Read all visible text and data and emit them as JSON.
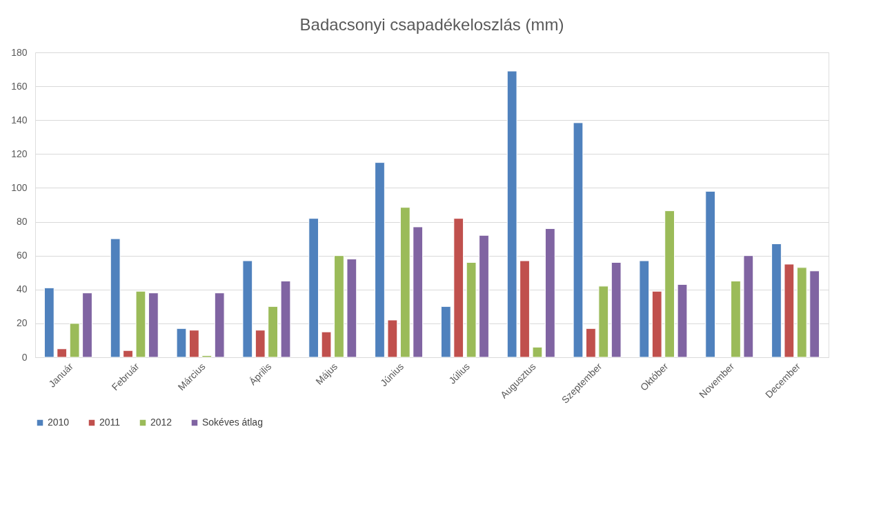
{
  "chart_data": {
    "type": "bar",
    "title": "Badacsonyi csapadékeloszlás (mm)",
    "categories": [
      "Január",
      "Február",
      "Március",
      "Április",
      "Május",
      "Június",
      "Július",
      "Augusztus",
      "Szeptember",
      "Október",
      "November",
      "December"
    ],
    "series": [
      {
        "name": "2010",
        "color": "#4f81bd",
        "values": [
          41,
          70,
          17,
          57,
          82,
          115,
          30,
          169,
          138.5,
          57,
          98,
          67
        ]
      },
      {
        "name": "2011",
        "color": "#c0504d",
        "values": [
          5,
          4,
          16,
          16,
          15,
          22,
          82,
          57,
          17,
          39,
          null,
          55
        ]
      },
      {
        "name": "2012",
        "color": "#9bbb59",
        "values": [
          20,
          39,
          1,
          30,
          60,
          88.5,
          56,
          6,
          42,
          86.5,
          45,
          53
        ]
      },
      {
        "name": "Sokéves átlag",
        "color": "#8064a2",
        "values": [
          38,
          38,
          38,
          45,
          58,
          77,
          72,
          76,
          56,
          43,
          60,
          51
        ]
      }
    ],
    "ylim": [
      0,
      180
    ],
    "yticks": [
      0,
      20,
      40,
      60,
      80,
      100,
      120,
      140,
      160,
      180
    ],
    "grid": "y",
    "legend": "bottom"
  }
}
